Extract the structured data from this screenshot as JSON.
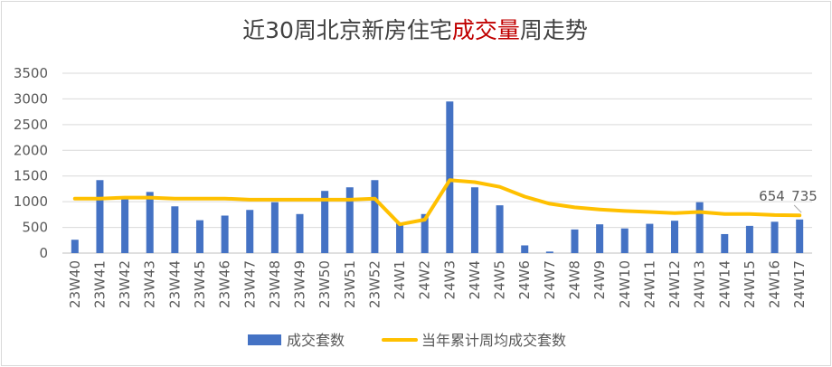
{
  "title": {
    "prefix": "近30周北京新房住宅",
    "highlight": "成交量",
    "suffix": "周走势"
  },
  "colors": {
    "bar": "#4472c4",
    "line": "#ffc000",
    "highlight": "#c00000",
    "axis_text": "#595959",
    "grid": "#d9d9d9"
  },
  "chart_data": {
    "type": "bar",
    "categories": [
      "23W40",
      "23W41",
      "23W42",
      "23W43",
      "23W44",
      "23W45",
      "23W46",
      "23W47",
      "23W48",
      "23W49",
      "23W50",
      "23W51",
      "23W52",
      "24W1",
      "24W2",
      "24W3",
      "24W4",
      "24W5",
      "24W6",
      "24W7",
      "24W8",
      "24W9",
      "24W10",
      "24W11",
      "24W12",
      "24W13",
      "24W14",
      "24W15",
      "24W16",
      "24W17"
    ],
    "series": [
      {
        "name": "成交套数",
        "type": "bar",
        "values": [
          260,
          1420,
          1050,
          1190,
          910,
          640,
          730,
          840,
          990,
          760,
          1210,
          1280,
          1420,
          590,
          760,
          2950,
          1280,
          930,
          150,
          30,
          460,
          560,
          480,
          570,
          630,
          990,
          370,
          530,
          610,
          654
        ]
      },
      {
        "name": "当年累计周均成交套数",
        "type": "line",
        "values": [
          1060,
          1060,
          1080,
          1080,
          1060,
          1060,
          1060,
          1040,
          1040,
          1040,
          1040,
          1040,
          1060,
          560,
          650,
          1420,
          1380,
          1290,
          1100,
          960,
          890,
          850,
          820,
          800,
          780,
          800,
          760,
          760,
          740,
          735
        ]
      }
    ],
    "ylim": [
      0,
      3500
    ],
    "yticks": [
      0,
      500,
      1000,
      1500,
      2000,
      2500,
      3000,
      3500
    ],
    "grid": true,
    "legend": "bottom",
    "annotations": [
      {
        "category": "24W17",
        "text": "654"
      },
      {
        "category": "24W17",
        "text": "735"
      }
    ]
  }
}
